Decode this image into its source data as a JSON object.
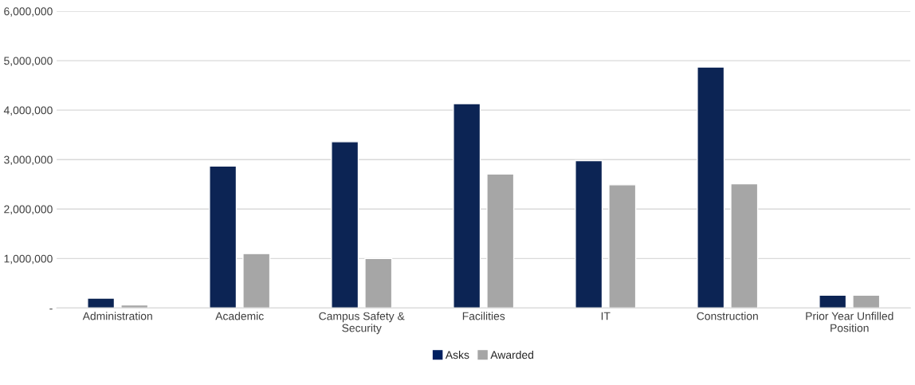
{
  "chart_data": {
    "type": "bar",
    "categories": [
      "Administration",
      "Academic",
      "Campus Safety &\nSecurity",
      "Facilities",
      "IT",
      "Construction",
      "Prior Year Unfilled\nPosition"
    ],
    "series": [
      {
        "name": "Asks",
        "color": "#002060",
        "values": [
          200000,
          2870000,
          3360000,
          4130000,
          2980000,
          4870000,
          260000
        ]
      },
      {
        "name": "Awarded",
        "color": "#a6a6a6",
        "values": [
          60000,
          1100000,
          1000000,
          2710000,
          2490000,
          2510000,
          260000
        ]
      }
    ],
    "ylim": [
      0,
      6000000
    ],
    "yticks": [
      {
        "value": 0,
        "label": "-"
      },
      {
        "value": 1000000,
        "label": "1,000,000"
      },
      {
        "value": 2000000,
        "label": "2,000,000"
      },
      {
        "value": 3000000,
        "label": "3,000,000"
      },
      {
        "value": 4000000,
        "label": "4,000,000"
      },
      {
        "value": 5000000,
        "label": "5,000,000"
      },
      {
        "value": 6000000,
        "label": "6,000,000"
      }
    ],
    "grid": "y",
    "legend": "bottom"
  }
}
